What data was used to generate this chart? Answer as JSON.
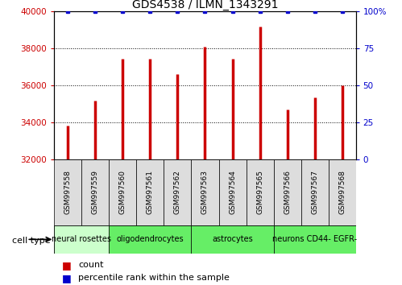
{
  "title": "GDS4538 / ILMN_1343291",
  "samples": [
    "GSM997558",
    "GSM997559",
    "GSM997560",
    "GSM997561",
    "GSM997562",
    "GSM997563",
    "GSM997564",
    "GSM997565",
    "GSM997566",
    "GSM997567",
    "GSM997568"
  ],
  "counts": [
    33850,
    35200,
    37450,
    37450,
    36600,
    38100,
    37450,
    39200,
    34700,
    35350,
    36000
  ],
  "percentile": [
    100,
    100,
    100,
    100,
    100,
    100,
    100,
    100,
    100,
    100,
    100
  ],
  "ylim_left": [
    32000,
    40000
  ],
  "ylim_right": [
    0,
    100
  ],
  "yticks_left": [
    32000,
    34000,
    36000,
    38000,
    40000
  ],
  "yticks_right": [
    0,
    25,
    50,
    75,
    100
  ],
  "bar_color": "#cc0000",
  "dot_color": "#0000cc",
  "ct_labels": [
    "neural rosettes",
    "oligodendrocytes",
    "astrocytes",
    "neurons CD44- EGFR-"
  ],
  "ct_starts": [
    0,
    2,
    5,
    8
  ],
  "ct_ends": [
    2,
    5,
    8,
    11
  ],
  "ct_colors": [
    "#ccffcc",
    "#66ee66",
    "#66ee66",
    "#66ee66"
  ],
  "sample_box_color": "#dddddd",
  "title_fontsize": 10,
  "tick_fontsize": 7.5,
  "sample_fontsize": 6.5,
  "ct_fontsize": 7,
  "legend_fontsize": 8
}
